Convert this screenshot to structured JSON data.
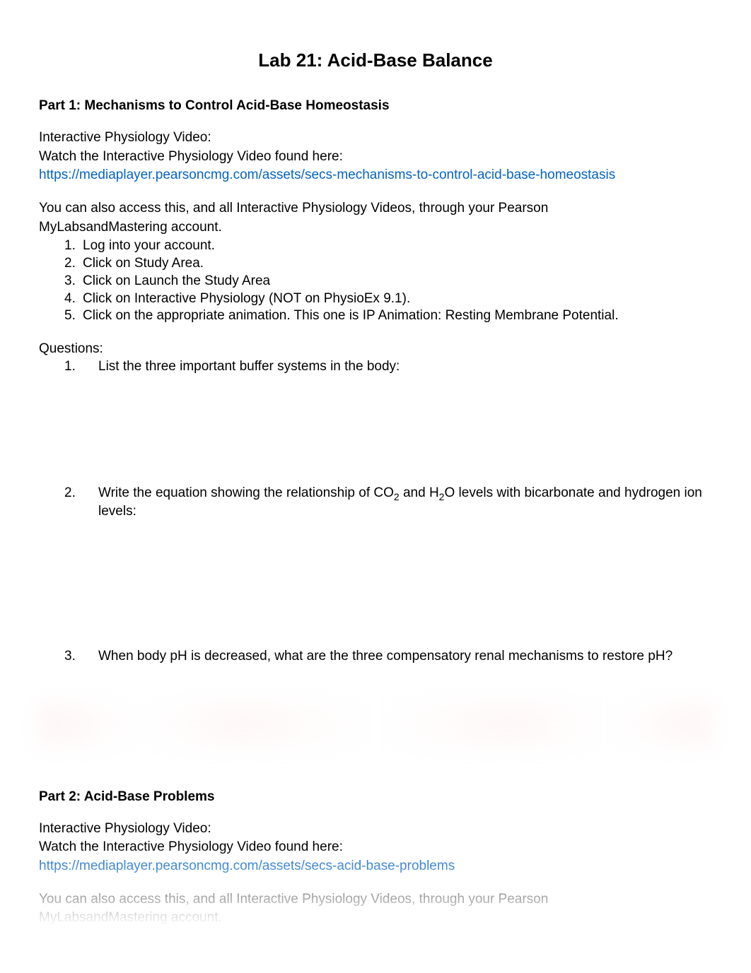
{
  "title": "Lab 21: Acid-Base Balance",
  "part1": {
    "heading": "Part 1: Mechanisms to Control Acid-Base Homeostasis",
    "intro1": "Interactive Physiology Video:",
    "intro2": "Watch the Interactive Physiology Video found here:",
    "link": "https://mediaplayer.pearsoncmg.com/assets/secs-mechanisms-to-control-acid-base-homeostasis",
    "access1": "You can also access this, and all Interactive Physiology Videos, through your Pearson",
    "access2": "MyLabsandMastering account.",
    "steps": {
      "s1_num": "1.",
      "s1": "Log into your account.",
      "s2_num": "2.",
      "s2": "Click on Study Area.",
      "s3_num": "3.",
      "s3": "Click on Launch the Study Area",
      "s4_num": "4.",
      "s4": "Click on Interactive Physiology (NOT on PhysioEx 9.1).",
      "s5_num": "5.",
      "s5": "Click on the appropriate animation. This one is IP Animation: Resting Membrane Potential."
    },
    "questions_label": "Questions:",
    "questions": {
      "q1_num": "1.",
      "q1": "List the three important buffer systems in the body:",
      "q2_num": "2.",
      "q2_pre": "Write the equation showing the relationship of CO",
      "q2_sub1": "2",
      "q2_mid": " and H",
      "q2_sub2": "2",
      "q2_post": "O levels with bicarbonate and hydrogen ion levels:",
      "q3_num": "3.",
      "q3": "When body pH is decreased, what are the three compensatory renal mechanisms to restore pH?"
    }
  },
  "part2": {
    "heading": "Part 2: Acid-Base Problems",
    "intro1": "Interactive Physiology Video:",
    "intro2": "Watch the Interactive Physiology Video found here:",
    "link": "https://mediaplayer.pearsoncmg.com/assets/secs-acid-base-problems",
    "access1": "You can also access this, and all Interactive Physiology Videos, through your Pearson",
    "access2": "MyLabsandMastering account."
  },
  "colors": {
    "text": "#000000",
    "link": "#0563c1",
    "background": "#ffffff"
  },
  "typography": {
    "title_fontsize": 26,
    "body_fontsize": 19,
    "font_family": "Arial"
  }
}
